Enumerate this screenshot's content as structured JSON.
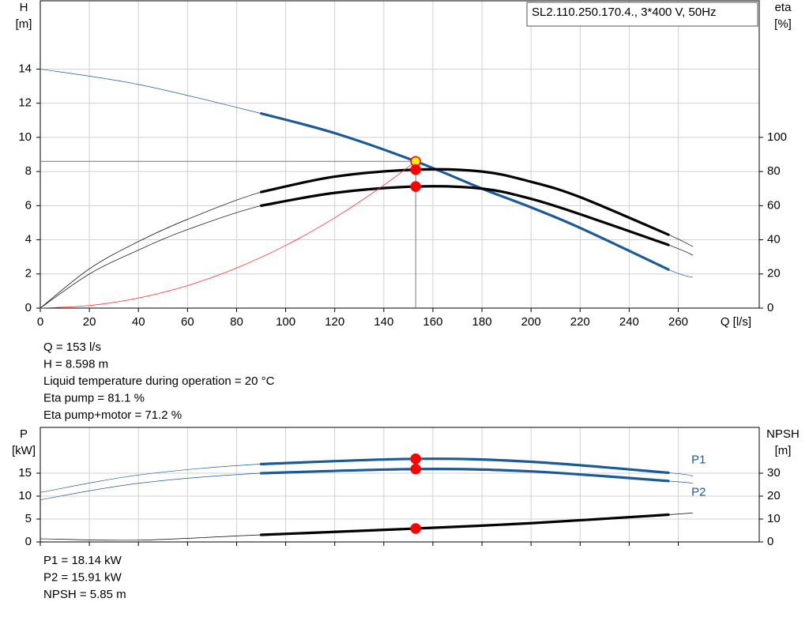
{
  "chart_data": [
    {
      "type": "line",
      "title": "SL2.110.250.170.4., 3*400 V, 50Hz",
      "ylabel": "H",
      "yunit": "[m]",
      "y2label": "eta",
      "y2unit": "[%]",
      "xlabel": "Q [l/s]",
      "xlim": [
        0,
        293
      ],
      "xticks": [
        0,
        20,
        40,
        60,
        80,
        100,
        120,
        140,
        160,
        180,
        200,
        220,
        240,
        260
      ],
      "ylim": [
        0,
        18
      ],
      "yticks": [
        0,
        2,
        4,
        6,
        8,
        10,
        12,
        14
      ],
      "y2lim": [
        0,
        180
      ],
      "y2ticks": [
        0,
        20,
        40,
        60,
        80,
        100
      ],
      "grid": true,
      "highlight_range": [
        90,
        256
      ],
      "series": [
        {
          "color": "#1c5a96",
          "x": [
            0,
            40,
            90,
            120,
            153,
            180,
            200,
            220,
            256,
            266
          ],
          "values": [
            14,
            13.1,
            11.4,
            10.25,
            8.598,
            7.0,
            5.9,
            4.7,
            2.26,
            1.8
          ]
        },
        {
          "color": "#000000",
          "axis": "y2",
          "x": [
            0,
            20,
            40,
            60,
            90,
            120,
            153,
            180,
            200,
            220,
            256,
            266
          ],
          "values": [
            0,
            23,
            39,
            52,
            68,
            77,
            81.1,
            80,
            74,
            65,
            43,
            36
          ]
        },
        {
          "color": "#000000",
          "axis": "y2",
          "x": [
            0,
            20,
            40,
            60,
            90,
            120,
            153,
            180,
            200,
            220,
            256,
            266
          ],
          "values": [
            0,
            20,
            34,
            46,
            60,
            67.5,
            71.2,
            70,
            64,
            55,
            37,
            31
          ]
        },
        {
          "color": "#ff3030",
          "thin": true,
          "x": [
            0,
            20,
            40,
            60,
            80,
            100,
            120,
            140,
            153
          ],
          "values": [
            0,
            0.15,
            0.59,
            1.32,
            2.35,
            3.67,
            5.29,
            7.2,
            8.598
          ]
        }
      ],
      "operating_point": {
        "x": 153,
        "points": [
          {
            "y": 8.598,
            "axis": "y",
            "color": "#ffee00"
          },
          {
            "y": 81.1,
            "axis": "y2",
            "color": "#ff0000"
          },
          {
            "y": 71.2,
            "axis": "y2",
            "color": "#ff0000"
          }
        ]
      },
      "info": [
        "Q = 153 l/s",
        "H = 8.598 m",
        "Liquid temperature during operation = 20 °C",
        "Eta pump = 81.1 %",
        "Eta pump+motor = 71.2 %"
      ]
    },
    {
      "type": "line",
      "ylabel": "P",
      "yunit": "[kW]",
      "y2label": "NPSH",
      "y2unit": "[m]",
      "xlim": [
        0,
        293
      ],
      "xticks": [
        0,
        20,
        40,
        60,
        80,
        100,
        120,
        140,
        160,
        180,
        200,
        220,
        240,
        260
      ],
      "ylim": [
        0,
        25
      ],
      "yticks": [
        0,
        5,
        10,
        15
      ],
      "y2lim": [
        0,
        50
      ],
      "y2ticks": [
        0,
        10,
        20,
        30
      ],
      "grid": true,
      "highlight_range": [
        90,
        256
      ],
      "legend": "inline",
      "series": [
        {
          "name": "P1",
          "color": "#1c5a96",
          "x": [
            0,
            40,
            90,
            153,
            200,
            256,
            266
          ],
          "values": [
            10.8,
            14.6,
            17.0,
            18.14,
            17.5,
            15.1,
            14.4
          ]
        },
        {
          "name": "P2",
          "color": "#1c5a96",
          "x": [
            0,
            40,
            90,
            153,
            200,
            256,
            266
          ],
          "values": [
            9.2,
            12.8,
            15.0,
            15.91,
            15.4,
            13.3,
            12.8
          ]
        },
        {
          "color": "#000000",
          "axis": "y2",
          "x": [
            0,
            40,
            90,
            153,
            200,
            256,
            266
          ],
          "values": [
            1.4,
            0.8,
            3.1,
            5.85,
            8.2,
            11.9,
            12.7
          ]
        }
      ],
      "operating_point": {
        "x": 153,
        "points": [
          {
            "y": 18.14,
            "axis": "y",
            "color": "#ff0000"
          },
          {
            "y": 15.91,
            "axis": "y",
            "color": "#ff0000"
          },
          {
            "y": 5.85,
            "axis": "y2",
            "color": "#ff0000"
          }
        ]
      },
      "info": [
        "P1 = 18.14 kW",
        "P2 = 15.91 kW",
        "NPSH = 5.85 m"
      ]
    }
  ]
}
